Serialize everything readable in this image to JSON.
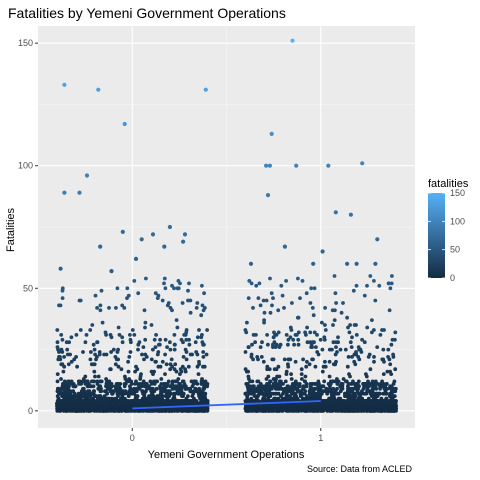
{
  "chart_data": {
    "type": "scatter",
    "title": "Fatalities by Yemeni Government Operations",
    "xlabel": "Yemeni Government Operations",
    "ylabel": "Fatalities",
    "caption": "Source: Data from ACLED",
    "x_ticks": [
      0,
      1
    ],
    "y_ticks": [
      0,
      50,
      100,
      150
    ],
    "xlim": [
      -0.5,
      1.5
    ],
    "ylim": [
      -7,
      157
    ],
    "grid": true,
    "jitter_width": 0.4,
    "legend": {
      "title": "fatalities",
      "position": "right",
      "breaks": [
        0,
        50,
        100,
        150
      ],
      "range": [
        0,
        150
      ],
      "color_low": "#132B43",
      "color_high": "#56B1F7"
    },
    "trend_line": {
      "color": "#3366FF",
      "points": [
        {
          "x": 0,
          "y": 1
        },
        {
          "x": 1,
          "y": 4
        }
      ]
    },
    "groups": [
      {
        "x": 0,
        "outliers": [
          {
            "x": -0.36,
            "y": 133
          },
          {
            "x": -0.18,
            "y": 131
          },
          {
            "x": -0.04,
            "y": 117
          },
          {
            "x": 0.39,
            "y": 131
          },
          {
            "x": -0.24,
            "y": 96
          },
          {
            "x": -0.36,
            "y": 89
          },
          {
            "x": -0.28,
            "y": 89
          },
          {
            "x": 0.2,
            "y": 75
          },
          {
            "x": -0.05,
            "y": 73
          },
          {
            "x": 0.11,
            "y": 72
          },
          {
            "x": 0.28,
            "y": 72
          },
          {
            "x": 0.05,
            "y": 70
          },
          {
            "x": 0.27,
            "y": 69
          },
          {
            "x": 0.17,
            "y": 67
          },
          {
            "x": -0.17,
            "y": 67
          },
          {
            "x": -0.38,
            "y": 58
          },
          {
            "x": 0.02,
            "y": 62
          },
          {
            "x": -0.11,
            "y": 57
          }
        ]
      },
      {
        "x": 1,
        "outliers": [
          {
            "x": 0.85,
            "y": 151
          },
          {
            "x": 0.74,
            "y": 113
          },
          {
            "x": 0.71,
            "y": 100
          },
          {
            "x": 0.73,
            "y": 100
          },
          {
            "x": 0.87,
            "y": 100
          },
          {
            "x": 1.04,
            "y": 100
          },
          {
            "x": 1.22,
            "y": 101
          },
          {
            "x": 0.72,
            "y": 88
          },
          {
            "x": 1.08,
            "y": 81
          },
          {
            "x": 1.16,
            "y": 80
          },
          {
            "x": 1.3,
            "y": 70
          },
          {
            "x": 0.81,
            "y": 67
          },
          {
            "x": 1.01,
            "y": 65
          },
          {
            "x": 0.63,
            "y": 60
          },
          {
            "x": 1.14,
            "y": 60
          },
          {
            "x": 1.19,
            "y": 60
          },
          {
            "x": 1.29,
            "y": 60
          },
          {
            "x": 0.96,
            "y": 60
          }
        ]
      }
    ]
  }
}
